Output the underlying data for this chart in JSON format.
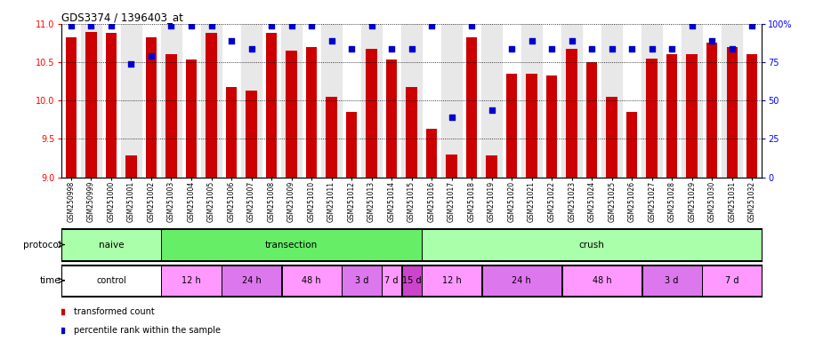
{
  "title": "GDS3374 / 1396403_at",
  "samples": [
    "GSM250998",
    "GSM250999",
    "GSM251000",
    "GSM251001",
    "GSM251002",
    "GSM251003",
    "GSM251004",
    "GSM251005",
    "GSM251006",
    "GSM251007",
    "GSM251008",
    "GSM251009",
    "GSM251010",
    "GSM251011",
    "GSM251012",
    "GSM251013",
    "GSM251014",
    "GSM251015",
    "GSM251016",
    "GSM251017",
    "GSM251018",
    "GSM251019",
    "GSM251020",
    "GSM251021",
    "GSM251022",
    "GSM251023",
    "GSM251024",
    "GSM251025",
    "GSM251026",
    "GSM251027",
    "GSM251028",
    "GSM251029",
    "GSM251030",
    "GSM251031",
    "GSM251032"
  ],
  "bar_values": [
    10.82,
    10.9,
    10.88,
    9.28,
    10.82,
    10.6,
    10.53,
    10.88,
    10.18,
    10.13,
    10.88,
    10.65,
    10.7,
    10.05,
    9.85,
    10.68,
    10.53,
    10.18,
    9.63,
    9.3,
    10.82,
    9.28,
    10.35,
    10.35,
    10.33,
    10.68,
    10.5,
    10.05,
    9.85,
    10.55,
    10.6,
    10.6,
    10.75,
    10.7,
    10.6
  ],
  "percentile_values": [
    99,
    99,
    99,
    74,
    79,
    99,
    99,
    99,
    89,
    84,
    99,
    99,
    99,
    89,
    84,
    99,
    84,
    84,
    99,
    39,
    99,
    44,
    84,
    89,
    84,
    89,
    84,
    84,
    84,
    84,
    84,
    99,
    89,
    84,
    99
  ],
  "ylim_lo": 9.0,
  "ylim_hi": 11.0,
  "yticks_left": [
    9.0,
    9.5,
    10.0,
    10.5,
    11.0
  ],
  "yticks_right": [
    0,
    25,
    50,
    75,
    100
  ],
  "bar_color": "#cc0000",
  "dot_color": "#0000cc",
  "protocol_groups": [
    {
      "label": "naive",
      "start": 0,
      "end": 4,
      "color": "#aaffaa"
    },
    {
      "label": "transection",
      "start": 5,
      "end": 17,
      "color": "#66ee66"
    },
    {
      "label": "crush",
      "start": 18,
      "end": 34,
      "color": "#aaffaa"
    }
  ],
  "time_groups": [
    {
      "label": "control",
      "start": 0,
      "end": 4,
      "color": "#ffffff"
    },
    {
      "label": "12 h",
      "start": 5,
      "end": 7,
      "color": "#ff99ff"
    },
    {
      "label": "24 h",
      "start": 8,
      "end": 10,
      "color": "#dd77ee"
    },
    {
      "label": "48 h",
      "start": 11,
      "end": 13,
      "color": "#ff99ff"
    },
    {
      "label": "3 d",
      "start": 14,
      "end": 15,
      "color": "#dd77ee"
    },
    {
      "label": "7 d",
      "start": 16,
      "end": 16,
      "color": "#ff99ff"
    },
    {
      "label": "15 d",
      "start": 17,
      "end": 17,
      "color": "#cc44cc"
    },
    {
      "label": "12 h",
      "start": 18,
      "end": 20,
      "color": "#ff99ff"
    },
    {
      "label": "24 h",
      "start": 21,
      "end": 24,
      "color": "#dd77ee"
    },
    {
      "label": "48 h",
      "start": 25,
      "end": 28,
      "color": "#ff99ff"
    },
    {
      "label": "3 d",
      "start": 29,
      "end": 31,
      "color": "#dd77ee"
    },
    {
      "label": "7 d",
      "start": 32,
      "end": 34,
      "color": "#ff99ff"
    }
  ],
  "legend_items": [
    {
      "label": "transformed count",
      "color": "#cc0000"
    },
    {
      "label": "percentile rank within the sample",
      "color": "#0000cc"
    }
  ]
}
